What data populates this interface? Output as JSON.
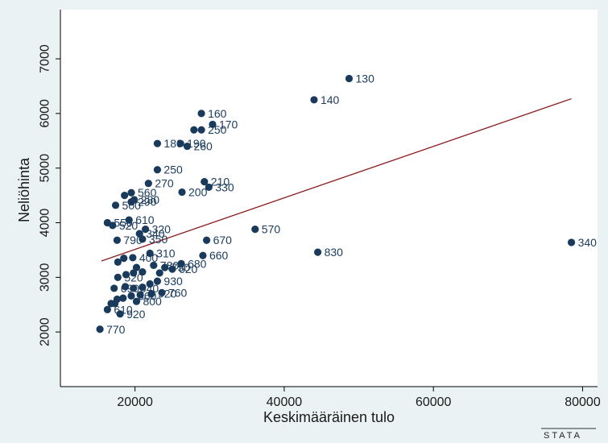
{
  "chart_data": {
    "type": "scatter",
    "xlabel": "Keskimääräinen tulo",
    "ylabel": "Neliöhinta",
    "xlim": [
      10000,
      82000
    ],
    "ylim": [
      1000,
      7900
    ],
    "xticks": [
      20000,
      40000,
      60000,
      80000
    ],
    "xtick_labels": [
      "20000",
      "40000",
      "60000",
      "80000"
    ],
    "yticks": [
      2000,
      3000,
      4000,
      5000,
      6000,
      7000
    ],
    "ytick_labels": [
      "2000",
      "3000",
      "4000",
      "5000",
      "6000",
      "7000"
    ],
    "grid": false,
    "legend": "none",
    "colors": {
      "background": "#eaf2f3",
      "plot_bg": "#ffffff",
      "marker": "#1a3a5c",
      "fit_line": "#8b1a1a"
    },
    "fit_line": {
      "x": [
        15500,
        78500
      ],
      "y": [
        3300,
        6270
      ]
    },
    "points": [
      {
        "x": 48700,
        "y": 6640,
        "label": "130"
      },
      {
        "x": 44000,
        "y": 6250,
        "label": "140"
      },
      {
        "x": 28900,
        "y": 6000,
        "label": "160"
      },
      {
        "x": 30400,
        "y": 5800,
        "label": "170"
      },
      {
        "x": 27900,
        "y": 5700,
        "label": ""
      },
      {
        "x": 28900,
        "y": 5700,
        "label": "250"
      },
      {
        "x": 23000,
        "y": 5450,
        "label": "180"
      },
      {
        "x": 26100,
        "y": 5450,
        "label": "190"
      },
      {
        "x": 27000,
        "y": 5400,
        "label": "260"
      },
      {
        "x": 23000,
        "y": 4970,
        "label": "250"
      },
      {
        "x": 29300,
        "y": 4750,
        "label": "210"
      },
      {
        "x": 21800,
        "y": 4720,
        "label": "270"
      },
      {
        "x": 29900,
        "y": 4650,
        "label": "330"
      },
      {
        "x": 26300,
        "y": 4560,
        "label": "200"
      },
      {
        "x": 19500,
        "y": 4550,
        "label": "560"
      },
      {
        "x": 18600,
        "y": 4500,
        "label": ""
      },
      {
        "x": 19900,
        "y": 4420,
        "label": "280"
      },
      {
        "x": 19500,
        "y": 4380,
        "label": "290"
      },
      {
        "x": 17400,
        "y": 4320,
        "label": "500"
      },
      {
        "x": 19200,
        "y": 4050,
        "label": "610"
      },
      {
        "x": 16300,
        "y": 4000,
        "label": "550"
      },
      {
        "x": 17000,
        "y": 3950,
        "label": "520"
      },
      {
        "x": 21400,
        "y": 3880,
        "label": "320"
      },
      {
        "x": 20600,
        "y": 3800,
        "label": "340"
      },
      {
        "x": 36100,
        "y": 3880,
        "label": "570"
      },
      {
        "x": 17600,
        "y": 3680,
        "label": "790"
      },
      {
        "x": 21000,
        "y": 3700,
        "label": "350"
      },
      {
        "x": 29600,
        "y": 3680,
        "label": "670"
      },
      {
        "x": 44500,
        "y": 3460,
        "label": "830"
      },
      {
        "x": 78500,
        "y": 3640,
        "label": "340"
      },
      {
        "x": 29100,
        "y": 3400,
        "label": "660"
      },
      {
        "x": 22000,
        "y": 3440,
        "label": "310"
      },
      {
        "x": 19700,
        "y": 3360,
        "label": "400"
      },
      {
        "x": 18500,
        "y": 3350,
        "label": ""
      },
      {
        "x": 17700,
        "y": 3280,
        "label": ""
      },
      {
        "x": 26200,
        "y": 3250,
        "label": "680"
      },
      {
        "x": 22500,
        "y": 3220,
        "label": "780"
      },
      {
        "x": 24000,
        "y": 3180,
        "label": "750"
      },
      {
        "x": 25000,
        "y": 3150,
        "label": "620"
      },
      {
        "x": 20200,
        "y": 3180,
        "label": ""
      },
      {
        "x": 21000,
        "y": 3100,
        "label": ""
      },
      {
        "x": 19800,
        "y": 3080,
        "label": ""
      },
      {
        "x": 18800,
        "y": 3050,
        "label": ""
      },
      {
        "x": 17700,
        "y": 3000,
        "label": "520"
      },
      {
        "x": 23300,
        "y": 3080,
        "label": ""
      },
      {
        "x": 23000,
        "y": 2930,
        "label": "930"
      },
      {
        "x": 22000,
        "y": 2880,
        "label": ""
      },
      {
        "x": 21000,
        "y": 2820,
        "label": ""
      },
      {
        "x": 19800,
        "y": 2800,
        "label": "540"
      },
      {
        "x": 18700,
        "y": 2830,
        "label": ""
      },
      {
        "x": 17200,
        "y": 2800,
        "label": "690"
      },
      {
        "x": 23600,
        "y": 2720,
        "label": "760"
      },
      {
        "x": 22200,
        "y": 2700,
        "label": "920"
      },
      {
        "x": 20700,
        "y": 2680,
        "label": ""
      },
      {
        "x": 19500,
        "y": 2660,
        "label": "660"
      },
      {
        "x": 18400,
        "y": 2620,
        "label": ""
      },
      {
        "x": 17600,
        "y": 2600,
        "label": ""
      },
      {
        "x": 20200,
        "y": 2560,
        "label": "800"
      },
      {
        "x": 17300,
        "y": 2520,
        "label": ""
      },
      {
        "x": 16800,
        "y": 2520,
        "label": ""
      },
      {
        "x": 16300,
        "y": 2410,
        "label": "610"
      },
      {
        "x": 18000,
        "y": 2330,
        "label": "920"
      },
      {
        "x": 15300,
        "y": 2050,
        "label": "770"
      }
    ]
  },
  "logo": {
    "text": "STATA"
  }
}
